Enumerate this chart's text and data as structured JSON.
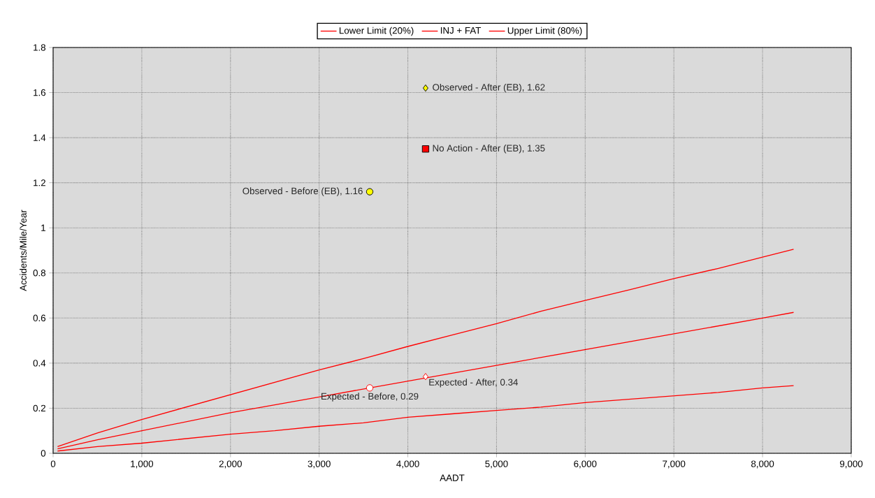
{
  "chart_data": {
    "type": "line",
    "xlabel": "AADT",
    "ylabel": "Accidents/Mile/Year",
    "xlim": [
      0,
      9000
    ],
    "ylim": [
      0,
      1.8
    ],
    "xticks": [
      0,
      {
        "value": 1000,
        "label": "1,000"
      },
      {
        "value": 2000,
        "label": "2,000"
      },
      {
        "value": 3000,
        "label": "3,000"
      },
      {
        "value": 4000,
        "label": "4,000"
      },
      {
        "value": 5000,
        "label": "5,000"
      },
      {
        "value": 6000,
        "label": "6,000"
      },
      {
        "value": 7000,
        "label": "7,000"
      },
      {
        "value": 8000,
        "label": "8,000"
      },
      {
        "value": 9000,
        "label": "9,000"
      }
    ],
    "yticks": [
      0,
      0.2,
      0.4,
      0.6,
      0.8,
      1,
      1.2,
      1.4,
      1.6,
      1.8
    ],
    "grid": true,
    "legend": "top",
    "series": [
      {
        "name": "Lower Limit (20%)",
        "color": "#ff0000",
        "x": [
          50,
          500,
          1000,
          1500,
          2000,
          2500,
          3000,
          3500,
          4000,
          4500,
          5000,
          5500,
          6000,
          6500,
          7000,
          7500,
          8000,
          8350
        ],
        "values": [
          0.01,
          0.03,
          0.045,
          0.065,
          0.085,
          0.1,
          0.12,
          0.135,
          0.16,
          0.175,
          0.19,
          0.205,
          0.225,
          0.24,
          0.255,
          0.27,
          0.29,
          0.3
        ]
      },
      {
        "name": "INJ + FAT",
        "color": "#ff0000",
        "x": [
          50,
          500,
          1000,
          1500,
          2000,
          2500,
          3000,
          3500,
          4000,
          4500,
          5000,
          5500,
          6000,
          6500,
          7000,
          7500,
          8000,
          8350
        ],
        "values": [
          0.02,
          0.06,
          0.1,
          0.14,
          0.18,
          0.215,
          0.25,
          0.285,
          0.32,
          0.355,
          0.39,
          0.425,
          0.46,
          0.495,
          0.53,
          0.565,
          0.6,
          0.625
        ]
      },
      {
        "name": "Upper Limit (80%)",
        "color": "#ff0000",
        "x": [
          50,
          500,
          1000,
          1500,
          2000,
          2500,
          3000,
          3500,
          4000,
          4500,
          5000,
          5500,
          6000,
          6500,
          7000,
          7500,
          8000,
          8350
        ],
        "values": [
          0.03,
          0.09,
          0.15,
          0.205,
          0.26,
          0.315,
          0.37,
          0.42,
          0.474,
          0.525,
          0.575,
          0.63,
          0.678,
          0.725,
          0.775,
          0.82,
          0.87,
          0.905
        ]
      },
      {
        "type": "scatter",
        "marker": "diamond",
        "color": "#ffff00",
        "x": [
          4200
        ],
        "values": [
          1.62
        ],
        "value_labels": [
          "Observed - After (EB), 1.62"
        ]
      },
      {
        "type": "scatter",
        "marker": "square",
        "color": "#ff0000",
        "x": [
          4200
        ],
        "values": [
          1.35
        ],
        "value_labels": [
          "No Action - After (EB), 1.35"
        ]
      },
      {
        "type": "scatter",
        "marker": "circle",
        "color": "#ffff00",
        "x": [
          3570
        ],
        "values": [
          1.16
        ],
        "value_labels": [
          "Observed - Before (EB), 1.16"
        ]
      },
      {
        "type": "scatter",
        "marker": "diamond",
        "color": "#ffffff",
        "x": [
          4200
        ],
        "values": [
          0.34
        ],
        "value_labels": [
          "Expected - After, 0.34"
        ]
      },
      {
        "type": "scatter",
        "marker": "circle",
        "color": "#ffffff",
        "x": [
          3570
        ],
        "values": [
          0.29
        ],
        "value_labels": [
          "Expected - Before, 0.29"
        ]
      }
    ]
  }
}
